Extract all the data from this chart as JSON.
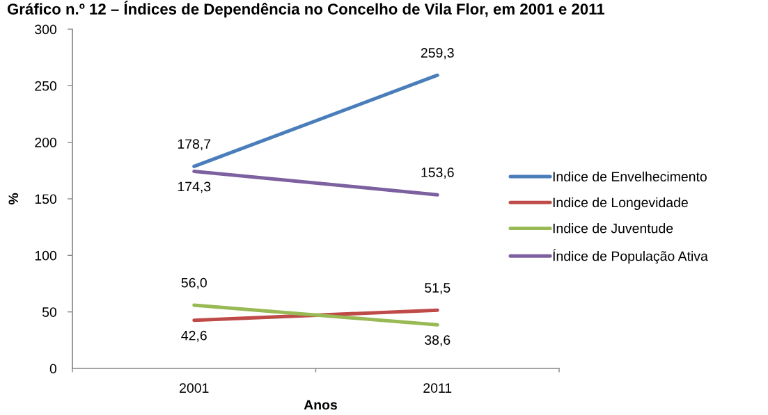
{
  "chart_data": {
    "type": "line",
    "title": "Gráfico n.º 12 – Índices de Dependência no Concelho de Vila Flor, em 2001 e 2011",
    "xlabel": "Anos",
    "ylabel": "%",
    "x": [
      2001,
      2011
    ],
    "series": [
      {
        "name": "Indice de Envelhecimento",
        "color": "#4a7ebb",
        "values": [
          178.7,
          259.3
        ],
        "value_labels": [
          "178,7",
          "259,3"
        ]
      },
      {
        "name": "Indice de Longevidade",
        "color": "#be4b48",
        "values": [
          42.6,
          51.5
        ],
        "value_labels": [
          "42,6",
          "51,5"
        ]
      },
      {
        "name": "Indice de Juventude",
        "color": "#98b954",
        "values": [
          56.0,
          38.6
        ],
        "value_labels": [
          "56,0",
          "38,6"
        ]
      },
      {
        "name": "Índice de População Ativa",
        "color": "#7d60a0",
        "values": [
          174.3,
          153.6
        ],
        "value_labels": [
          "174,3",
          "153,6"
        ]
      }
    ],
    "xlim": [
      1996,
      2016
    ],
    "xticks": [
      {
        "value": 1996,
        "label": null
      },
      2001,
      {
        "value": 2006,
        "label": null
      },
      2011,
      {
        "value": 2016,
        "label": null
      }
    ],
    "ylim": [
      0,
      300
    ],
    "yticks": [
      0,
      50,
      100,
      150,
      200,
      250,
      300
    ],
    "legend": "right",
    "line_style": "solid"
  }
}
